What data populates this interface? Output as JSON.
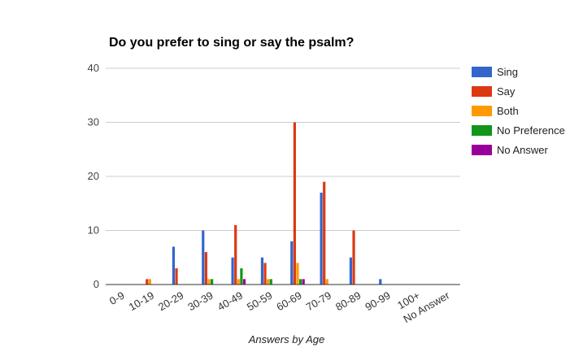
{
  "chart_data": {
    "type": "bar",
    "title": "Do you prefer to sing or say the psalm?",
    "xlabel": "Answers by Age",
    "ylabel": "",
    "ylim": [
      0,
      40
    ],
    "yticks": [
      0,
      10,
      20,
      30,
      40
    ],
    "grid": true,
    "legend_position": "right",
    "categories": [
      "0-9",
      "10-19",
      "20-29",
      "30-39",
      "40-49",
      "50-59",
      "60-69",
      "70-79",
      "80-89",
      "90-99",
      "100+",
      "No Answer"
    ],
    "series": [
      {
        "name": "Sing",
        "color": "#3366cc",
        "values": [
          0,
          0,
          7,
          10,
          5,
          5,
          8,
          17,
          5,
          1,
          0,
          0
        ]
      },
      {
        "name": "Say",
        "color": "#dc3912",
        "values": [
          0,
          1,
          3,
          6,
          11,
          4,
          30,
          19,
          10,
          0,
          0,
          0
        ]
      },
      {
        "name": "Both",
        "color": "#ff9900",
        "values": [
          0,
          1,
          0,
          1,
          1,
          1,
          4,
          1,
          0,
          0,
          0,
          0
        ]
      },
      {
        "name": "No Preference",
        "color": "#109618",
        "values": [
          0,
          0,
          0,
          1,
          3,
          1,
          1,
          0,
          0,
          0,
          0,
          0
        ]
      },
      {
        "name": "No Answer",
        "color": "#990099",
        "values": [
          0,
          0,
          0,
          0,
          1,
          0,
          1,
          0,
          0,
          0,
          0,
          0
        ]
      }
    ]
  }
}
